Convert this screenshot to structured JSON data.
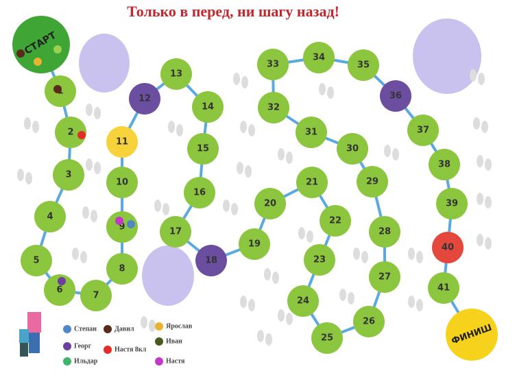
{
  "title": "Только в перед, ни шагу назад!",
  "start": "СТАРТ",
  "finish": "ФИНИШ",
  "cells": [
    1,
    2,
    3,
    4,
    5,
    6,
    7,
    8,
    9,
    10,
    11,
    12,
    13,
    14,
    15,
    16,
    17,
    18,
    19,
    20,
    21,
    22,
    23,
    24,
    25,
    26,
    27,
    28,
    29,
    30,
    31,
    32,
    33,
    34,
    35,
    36,
    37,
    38,
    39,
    40,
    41
  ],
  "legend": [
    {
      "name": "Степан",
      "color": "#4f86c6"
    },
    {
      "name": "Давил",
      "color": "#5a2a1a"
    },
    {
      "name": "Ярослав",
      "color": "#e8b430"
    },
    {
      "name": "Георг",
      "color": "#6b3fa0"
    },
    {
      "name": "Настя 8кл",
      "color": "#e52d27"
    },
    {
      "name": "Иван",
      "color": "#4a5a1e"
    },
    {
      "name": "Ильдар",
      "color": "#3fb56a"
    },
    {
      "name": "Настя",
      "color": "#c438c8"
    }
  ]
}
